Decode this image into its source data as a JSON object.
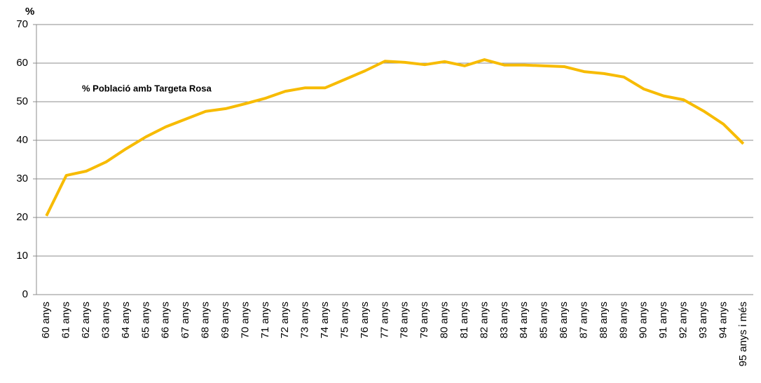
{
  "chart_data": {
    "type": "line",
    "y_label": "%",
    "annotation": "% Població  amb Targeta Rosa",
    "categories": [
      "60 anys",
      "61 anys",
      "62 anys",
      "63 anys",
      "64 anys",
      "65 anys",
      "66 anys",
      "67 anys",
      "68 anys",
      "69 anys",
      "70 anys",
      "71 anys",
      "72 anys",
      "73 anys",
      "74 anys",
      "75 anys",
      "76 anys",
      "77 anys",
      "78 anys",
      "79 anys",
      "80 anys",
      "81 anys",
      "82 anys",
      "83 anys",
      "84 anys",
      "85 anys",
      "86 anys",
      "87 anys",
      "88 anys",
      "89 anys",
      "90 anys",
      "91 anys",
      "92 anys",
      "93 anys",
      "94 anys",
      "95 anys i més"
    ],
    "series": [
      {
        "name": "% Població  amb Targeta Rosa",
        "color": "#f7bb00",
        "values": [
          20.4,
          30.9,
          32,
          34.4,
          37.8,
          40.9,
          43.5,
          45.5,
          47.5,
          48.2,
          49.5,
          50.9,
          52.7,
          53.6,
          53.6,
          55.8,
          58,
          60.5,
          60.2,
          59.6,
          60.4,
          59.3,
          60.9,
          59.5,
          59.5,
          59.3,
          59.1,
          57.8,
          57.3,
          56.4,
          53.3,
          51.5,
          50.5,
          47.6,
          44.2,
          39.1
        ]
      }
    ],
    "ylim": [
      0,
      70
    ],
    "yticks": [
      0,
      10,
      20,
      30,
      40,
      50,
      60,
      70
    ],
    "grid": true
  }
}
